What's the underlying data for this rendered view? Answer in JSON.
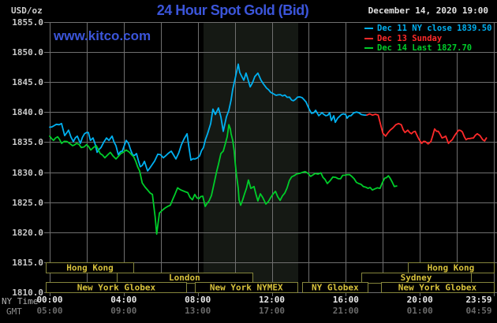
{
  "header": {
    "unit_label": "USD/oz",
    "title": "24 Hour Spot Gold (Bid)",
    "date_label": "December 14, 2020 19:00",
    "watermark": "www.kitco.com"
  },
  "legend": {
    "items": [
      {
        "label": "Dec 11 NY close 1839.50",
        "color": "#00b0f0"
      },
      {
        "label": "Dec 13 Sunday",
        "color": "#ff2a2a"
      },
      {
        "label": "Dec 14 Last 1827.70",
        "color": "#00cd2a"
      }
    ]
  },
  "axes": {
    "ny_name": "NY Time",
    "gmt_name": "GMT",
    "y_ticks": [
      "1855.0",
      "1850.0",
      "1845.0",
      "1840.0",
      "1835.0",
      "1830.0",
      "1825.0",
      "1820.0",
      "1815.0",
      "1810.0"
    ],
    "x_ny": [
      {
        "hour": 0,
        "text": "00:00"
      },
      {
        "hour": 4,
        "text": "04:00"
      },
      {
        "hour": 8,
        "text": "08:00"
      },
      {
        "hour": 12,
        "text": "12:00"
      },
      {
        "hour": 16,
        "text": "16:00"
      },
      {
        "hour": 20,
        "text": "20:00"
      },
      {
        "hour": 24,
        "text": "23:59"
      }
    ],
    "x_gmt": [
      {
        "hour": 0,
        "text": "05:00"
      },
      {
        "hour": 4,
        "text": "09:00"
      },
      {
        "hour": 8,
        "text": "13:00"
      },
      {
        "hour": 12,
        "text": "17:00"
      },
      {
        "hour": 16,
        "text": "21:00"
      },
      {
        "hour": 20,
        "text": "01:00"
      },
      {
        "hour": 24,
        "text": "04:59"
      }
    ]
  },
  "sessions": {
    "rows": [
      [
        {
          "label": "Hong Kong",
          "start": -0.2,
          "end": 4.55
        },
        {
          "label": "Hong Kong",
          "start": 19.35,
          "end": 24
        }
      ],
      [
        {
          "label": "London",
          "start": 3.62,
          "end": 10.95
        },
        {
          "label": "Sydney",
          "start": 16.84,
          "end": 22.76
        }
      ],
      [
        {
          "label": "New York Globex",
          "start": -0.2,
          "end": 7.4
        },
        {
          "label": "New York NYMEX",
          "start": 7.85,
          "end": 13.4
        },
        {
          "label": "NY Globex",
          "start": 13.65,
          "end": 17.2
        },
        {
          "label": "New York Globex",
          "start": 17.9,
          "end": 24
        }
      ]
    ]
  },
  "colors": {
    "background": "#000000",
    "grid": "#6f6f6f",
    "band": "#151914",
    "title_blue": "#3b55d9",
    "axis_text": "#c9c9c9",
    "ny_time_text": "#e8e8e8",
    "gmt_text": "#6a6a6a",
    "session_border": "#85853c",
    "session_text": "#d8c23c",
    "date_text": "#e2e2e2"
  },
  "chart_data": {
    "type": "line",
    "title": "24 Hour Spot Gold (Bid)",
    "xlabel": "NY Time (hours 00:00-23:59)",
    "ylabel": "USD/oz",
    "xlim": [
      0,
      24
    ],
    "ylim": [
      1810,
      1855
    ],
    "y_gridline_every": 5,
    "x_gridline_every_hours": 2,
    "x_tick_hours": [
      0,
      4,
      8,
      12,
      16,
      20,
      24
    ],
    "grid": true,
    "legend_position": "top-right",
    "nymex_highlight_band": {
      "start_hour": 8.31,
      "end_hour": 13.43
    },
    "series": [
      {
        "name": "Dec 11 NY close",
        "color": "#00b0f0",
        "last_value": 1839.5,
        "points": [
          [
            0.0,
            1837.5
          ],
          [
            0.21,
            1837.7
          ],
          [
            0.51,
            1837.9
          ],
          [
            0.64,
            1838.1
          ],
          [
            0.81,
            1836.1
          ],
          [
            1.02,
            1837.0
          ],
          [
            1.28,
            1835.1
          ],
          [
            1.49,
            1836.0
          ],
          [
            1.66,
            1834.8
          ],
          [
            1.88,
            1836.4
          ],
          [
            2.09,
            1836.6
          ],
          [
            2.2,
            1835.3
          ],
          [
            2.34,
            1835.7
          ],
          [
            2.56,
            1833.3
          ],
          [
            2.77,
            1834.1
          ],
          [
            3.07,
            1835.7
          ],
          [
            3.2,
            1835.3
          ],
          [
            3.37,
            1836.0
          ],
          [
            3.58,
            1834.4
          ],
          [
            3.71,
            1832.9
          ],
          [
            3.92,
            1833.5
          ],
          [
            4.13,
            1835.3
          ],
          [
            4.26,
            1834.8
          ],
          [
            4.48,
            1832.9
          ],
          [
            4.69,
            1833.1
          ],
          [
            4.9,
            1830.9
          ],
          [
            5.12,
            1831.8
          ],
          [
            5.29,
            1830.2
          ],
          [
            5.5,
            1831.1
          ],
          [
            5.84,
            1833.0
          ],
          [
            6.14,
            1832.4
          ],
          [
            6.57,
            1833.5
          ],
          [
            6.82,
            1832.2
          ],
          [
            7.12,
            1834.6
          ],
          [
            7.42,
            1836.4
          ],
          [
            7.63,
            1832.0
          ],
          [
            7.85,
            1832.2
          ],
          [
            8.1,
            1832.7
          ],
          [
            8.31,
            1834.1
          ],
          [
            8.53,
            1836.4
          ],
          [
            8.7,
            1838.1
          ],
          [
            8.82,
            1840.5
          ],
          [
            8.95,
            1839.6
          ],
          [
            9.12,
            1840.7
          ],
          [
            9.25,
            1839.2
          ],
          [
            9.38,
            1836.8
          ],
          [
            9.55,
            1839.2
          ],
          [
            9.68,
            1840.3
          ],
          [
            9.8,
            1842.0
          ],
          [
            9.89,
            1843.8
          ],
          [
            10.02,
            1845.6
          ],
          [
            10.19,
            1848.0
          ],
          [
            10.27,
            1846.6
          ],
          [
            10.4,
            1845.8
          ],
          [
            10.49,
            1845.3
          ],
          [
            10.61,
            1846.5
          ],
          [
            10.7,
            1845.6
          ],
          [
            10.83,
            1844.2
          ],
          [
            10.96,
            1844.9
          ],
          [
            11.08,
            1845.9
          ],
          [
            11.25,
            1846.5
          ],
          [
            11.42,
            1845.3
          ],
          [
            11.55,
            1844.7
          ],
          [
            11.72,
            1844.0
          ],
          [
            11.94,
            1843.3
          ],
          [
            12.23,
            1842.8
          ],
          [
            12.58,
            1842.7
          ],
          [
            12.96,
            1842.5
          ],
          [
            13.17,
            1841.9
          ],
          [
            13.39,
            1842.5
          ],
          [
            13.64,
            1842.4
          ],
          [
            13.85,
            1841.7
          ],
          [
            14.02,
            1840.5
          ],
          [
            14.15,
            1839.8
          ],
          [
            14.37,
            1840.3
          ],
          [
            14.54,
            1839.4
          ],
          [
            14.71,
            1839.9
          ],
          [
            14.92,
            1839.4
          ],
          [
            15.13,
            1839.9
          ],
          [
            15.22,
            1838.6
          ],
          [
            15.35,
            1839.4
          ],
          [
            15.43,
            1838.3
          ],
          [
            15.56,
            1839.0
          ],
          [
            15.77,
            1839.6
          ],
          [
            15.99,
            1839.6
          ],
          [
            16.07,
            1839.0
          ],
          [
            16.28,
            1839.4
          ],
          [
            16.58,
            1840.0
          ],
          [
            16.71,
            1839.9
          ],
          [
            16.84,
            1839.6
          ],
          [
            17.01,
            1839.5
          ],
          [
            17.14,
            1839.5
          ]
        ]
      },
      {
        "name": "Dec 13 Sunday",
        "color": "#ff2a2a",
        "points": [
          [
            17.14,
            1839.5
          ],
          [
            17.75,
            1839.5
          ],
          [
            17.9,
            1837.7
          ],
          [
            18.0,
            1836.5
          ],
          [
            18.15,
            1836.0
          ],
          [
            18.4,
            1837.0
          ],
          [
            18.7,
            1837.9
          ],
          [
            18.85,
            1838.1
          ],
          [
            19.0,
            1837.9
          ],
          [
            19.2,
            1836.6
          ],
          [
            19.35,
            1837.0
          ],
          [
            19.55,
            1836.4
          ],
          [
            19.75,
            1836.8
          ],
          [
            19.95,
            1835.5
          ],
          [
            20.1,
            1834.8
          ],
          [
            20.3,
            1835.1
          ],
          [
            20.45,
            1834.7
          ],
          [
            20.6,
            1835.1
          ],
          [
            20.8,
            1837.2
          ],
          [
            21.0,
            1836.8
          ],
          [
            21.2,
            1835.7
          ],
          [
            21.4,
            1836.0
          ],
          [
            21.55,
            1834.8
          ],
          [
            21.75,
            1835.4
          ],
          [
            21.95,
            1836.4
          ],
          [
            22.1,
            1837.0
          ],
          [
            22.3,
            1836.7
          ],
          [
            22.5,
            1835.4
          ],
          [
            22.7,
            1835.6
          ],
          [
            22.9,
            1835.7
          ],
          [
            23.1,
            1836.4
          ],
          [
            23.25,
            1836.1
          ],
          [
            23.4,
            1835.4
          ],
          [
            23.5,
            1835.2
          ],
          [
            23.6,
            1835.7
          ]
        ]
      },
      {
        "name": "Dec 14 Last",
        "color": "#00cd2a",
        "last_value": 1827.7,
        "points": [
          [
            0.0,
            1836.0
          ],
          [
            0.21,
            1835.3
          ],
          [
            0.43,
            1835.9
          ],
          [
            0.64,
            1834.8
          ],
          [
            0.94,
            1835.1
          ],
          [
            1.24,
            1834.4
          ],
          [
            1.45,
            1834.8
          ],
          [
            1.71,
            1834.1
          ],
          [
            2.0,
            1834.6
          ],
          [
            2.22,
            1833.7
          ],
          [
            2.52,
            1834.4
          ],
          [
            2.73,
            1833.1
          ],
          [
            2.98,
            1832.4
          ],
          [
            3.28,
            1833.3
          ],
          [
            3.58,
            1832.2
          ],
          [
            3.84,
            1833.1
          ],
          [
            4.13,
            1833.7
          ],
          [
            4.43,
            1832.9
          ],
          [
            4.65,
            1831.8
          ],
          [
            4.86,
            1830.2
          ],
          [
            5.0,
            1828.2
          ],
          [
            5.3,
            1827.0
          ],
          [
            5.55,
            1826.3
          ],
          [
            5.7,
            1822.5
          ],
          [
            5.78,
            1819.7
          ],
          [
            5.93,
            1823.2
          ],
          [
            6.22,
            1824.0
          ],
          [
            6.52,
            1824.5
          ],
          [
            6.91,
            1827.4
          ],
          [
            7.12,
            1827.0
          ],
          [
            7.46,
            1826.6
          ],
          [
            7.71,
            1825.4
          ],
          [
            7.84,
            1826.3
          ],
          [
            8.06,
            1825.6
          ],
          [
            8.27,
            1826.0
          ],
          [
            8.4,
            1824.3
          ],
          [
            8.61,
            1825.2
          ],
          [
            8.74,
            1826.1
          ],
          [
            8.9,
            1828.4
          ],
          [
            9.03,
            1830.2
          ],
          [
            9.12,
            1831.3
          ],
          [
            9.25,
            1833.1
          ],
          [
            9.38,
            1833.5
          ],
          [
            9.46,
            1834.4
          ],
          [
            9.59,
            1835.9
          ],
          [
            9.68,
            1837.9
          ],
          [
            9.76,
            1837.2
          ],
          [
            9.8,
            1836.4
          ],
          [
            9.89,
            1835.3
          ],
          [
            9.97,
            1833.5
          ],
          [
            10.02,
            1831.6
          ],
          [
            10.1,
            1829.4
          ],
          [
            10.19,
            1827.3
          ],
          [
            10.23,
            1825.4
          ],
          [
            10.32,
            1824.5
          ],
          [
            10.53,
            1826.4
          ],
          [
            10.74,
            1828.7
          ],
          [
            10.87,
            1827.3
          ],
          [
            11.04,
            1827.6
          ],
          [
            11.25,
            1825.2
          ],
          [
            11.38,
            1826.4
          ],
          [
            11.51,
            1825.8
          ],
          [
            11.68,
            1824.7
          ],
          [
            11.95,
            1825.8
          ],
          [
            12.2,
            1826.8
          ],
          [
            12.45,
            1825.3
          ],
          [
            12.7,
            1826.5
          ],
          [
            12.95,
            1828.6
          ],
          [
            13.2,
            1829.4
          ],
          [
            13.5,
            1829.8
          ],
          [
            13.8,
            1830.1
          ],
          [
            14.1,
            1829.3
          ],
          [
            14.35,
            1829.8
          ],
          [
            14.65,
            1829.9
          ],
          [
            15.0,
            1828.1
          ],
          [
            15.3,
            1829.2
          ],
          [
            15.6,
            1828.9
          ],
          [
            15.95,
            1829.5
          ],
          [
            16.2,
            1829.6
          ],
          [
            16.45,
            1828.9
          ],
          [
            16.7,
            1828.1
          ],
          [
            16.95,
            1827.6
          ],
          [
            17.2,
            1827.3
          ],
          [
            17.55,
            1827.2
          ],
          [
            17.85,
            1827.3
          ],
          [
            18.1,
            1829.0
          ],
          [
            18.3,
            1829.4
          ],
          [
            18.5,
            1828.4
          ],
          [
            18.62,
            1827.6
          ],
          [
            18.75,
            1827.7
          ]
        ]
      }
    ]
  }
}
